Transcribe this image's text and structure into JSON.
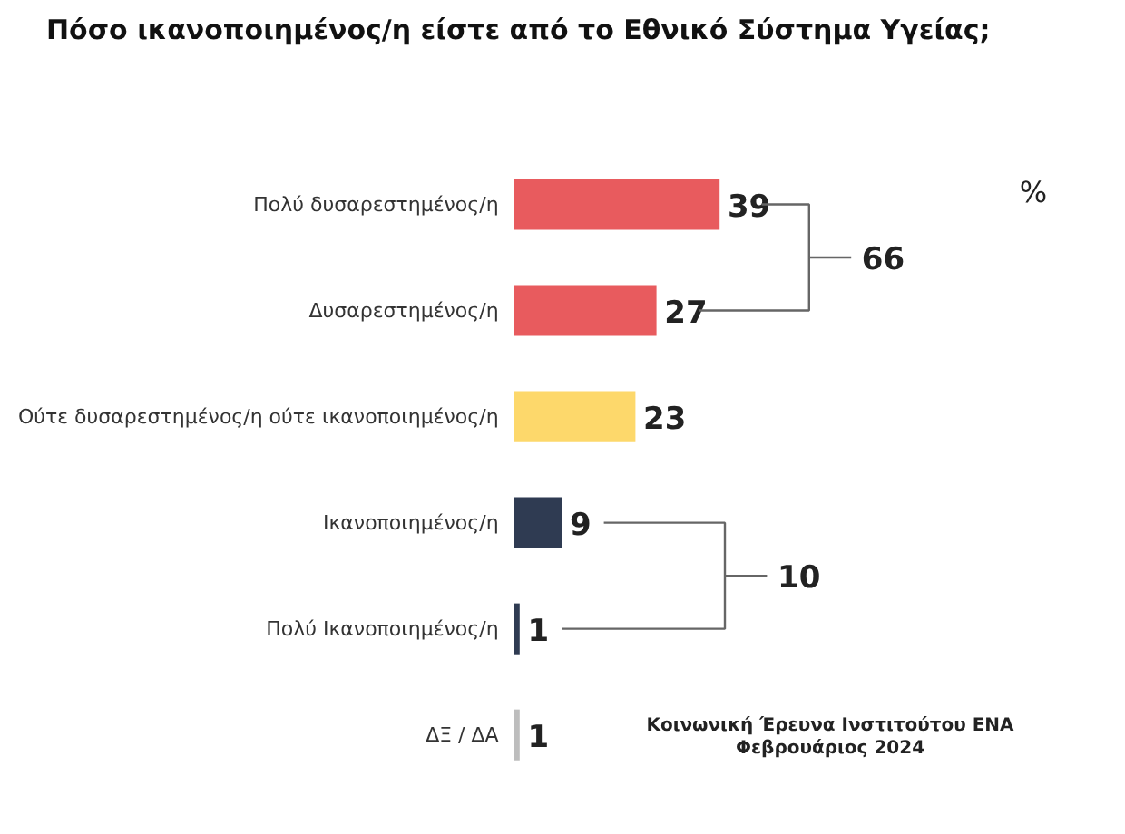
{
  "chart_data": {
    "type": "bar",
    "orientation": "horizontal",
    "title": "Πόσο ικανοποιημένος/η είστε από το Εθνικό Σύστημα Υγείας;",
    "categories": [
      "Πολύ δυσαρεστημένος/η",
      "Δυσαρεστημένος/η",
      "Ούτε δυσαρεστημένος/η ούτε ικανοποιημένος/η",
      "Ικανοποιημένος/η",
      "Πολύ Ικανοποιημένος/η",
      "ΔΞ / ΔΑ"
    ],
    "values": [
      39,
      27,
      23,
      9,
      1,
      1
    ],
    "colors": [
      "#e85b5e",
      "#e85b5e",
      "#fdd86b",
      "#2f3b52",
      "#2f3b52",
      "#bdbdbd"
    ],
    "data_labels": true,
    "annotations": [
      "%",
      "66",
      "10",
      "Κοινωνική Έρευνα Ινστιτούτου ΕΝΑ",
      "Φεβρουάριος 2024"
    ]
  }
}
